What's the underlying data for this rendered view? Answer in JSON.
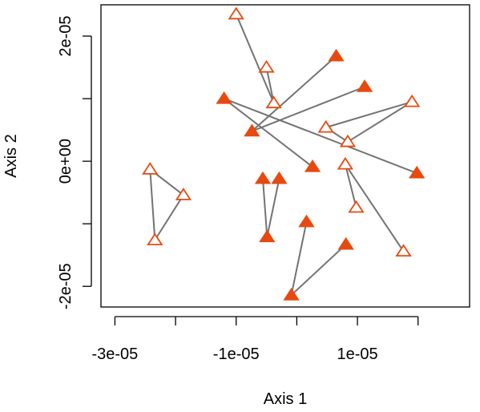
{
  "chart_data": {
    "type": "scatter",
    "title": "",
    "xlabel": "Axis 1",
    "ylabel": "Axis 2",
    "xlim": [
      -3.23e-05,
      2.85e-05
    ],
    "ylim": [
      -2.33e-05,
      2.5e-05
    ],
    "xticks": [
      -3e-05,
      -2e-05,
      -1e-05,
      0,
      1e-05,
      2e-05
    ],
    "xtick_labels": [
      "-3e-05",
      "",
      "-1e-05",
      "",
      "1e-05",
      ""
    ],
    "yticks": [
      -2e-05,
      -1e-05,
      0,
      1e-05,
      2e-05
    ],
    "ytick_labels": [
      "-2e-05",
      "",
      "0e+00",
      "",
      "2e-05"
    ],
    "grid": false,
    "colors": {
      "marker": "#e8490f",
      "segment": "#737373",
      "axis": "#000000"
    },
    "series": [
      {
        "marker": "open-triangle",
        "points": [
          {
            "x": -1e-05,
            "y": 2.35e-05
          },
          {
            "x": -5e-06,
            "y": 1.5e-05
          },
          {
            "x": -3.8e-06,
            "y": 9.3e-06
          },
          {
            "x": 4.8e-06,
            "y": 5.4e-06
          },
          {
            "x": 8.4e-06,
            "y": 3.1e-06
          },
          {
            "x": 1.9e-05,
            "y": 9.5e-06
          },
          {
            "x": 8e-06,
            "y": -5e-07
          },
          {
            "x": 9.8e-06,
            "y": -7.4e-06
          },
          {
            "x": 1.76e-05,
            "y": -1.44e-05
          },
          {
            "x": -2.42e-05,
            "y": -1.3e-06
          },
          {
            "x": -1.87e-05,
            "y": -5.4e-06
          },
          {
            "x": -2.34e-05,
            "y": -1.26e-05
          }
        ]
      },
      {
        "marker": "filled-triangle",
        "points": [
          {
            "x": -1.2e-05,
            "y": 1e-05
          },
          {
            "x": -7.4e-06,
            "y": 4.8e-06
          },
          {
            "x": 6.5e-06,
            "y": 1.68e-05
          },
          {
            "x": 1.12e-05,
            "y": 1.19e-05
          },
          {
            "x": 2.6e-06,
            "y": -9e-07
          },
          {
            "x": 1.98e-05,
            "y": -1.9e-06
          },
          {
            "x": -5.6e-06,
            "y": -2.8e-06
          },
          {
            "x": -2.9e-06,
            "y": -2.8e-06
          },
          {
            "x": -4.9e-06,
            "y": -1.21e-05
          },
          {
            "x": 1.6e-06,
            "y": -9.7e-06
          },
          {
            "x": 8.1e-06,
            "y": -1.33e-05
          },
          {
            "x": -9e-07,
            "y": -2.14e-05
          }
        ]
      }
    ],
    "segments": [
      {
        "x1": -1e-05,
        "y1": 2.35e-05,
        "x2": -3.8e-06,
        "y2": 9.3e-06
      },
      {
        "x1": -5e-06,
        "y1": 1.5e-05,
        "x2": -3.8e-06,
        "y2": 9.3e-06
      },
      {
        "x1": -7.4e-06,
        "y1": 4.8e-06,
        "x2": 6.5e-06,
        "y2": 1.68e-05
      },
      {
        "x1": -7.4e-06,
        "y1": 4.8e-06,
        "x2": 1.12e-05,
        "y2": 1.19e-05
      },
      {
        "x1": -1.2e-05,
        "y1": 1e-05,
        "x2": 1.98e-05,
        "y2": -1.9e-06
      },
      {
        "x1": -1.2e-05,
        "y1": 1e-05,
        "x2": 2.6e-06,
        "y2": -9e-07
      },
      {
        "x1": 4.8e-06,
        "y1": 5.4e-06,
        "x2": 8.4e-06,
        "y2": 3.1e-06
      },
      {
        "x1": 8.4e-06,
        "y1": 3.1e-06,
        "x2": 1.9e-05,
        "y2": 9.5e-06
      },
      {
        "x1": 4.8e-06,
        "y1": 5.4e-06,
        "x2": 1.9e-05,
        "y2": 9.5e-06
      },
      {
        "x1": 8e-06,
        "y1": -5e-07,
        "x2": 9.8e-06,
        "y2": -7.4e-06
      },
      {
        "x1": 8e-06,
        "y1": -5e-07,
        "x2": 1.76e-05,
        "y2": -1.44e-05
      },
      {
        "x1": -2.42e-05,
        "y1": -1.3e-06,
        "x2": -1.87e-05,
        "y2": -5.4e-06
      },
      {
        "x1": -2.42e-05,
        "y1": -1.3e-06,
        "x2": -2.34e-05,
        "y2": -1.26e-05
      },
      {
        "x1": -1.87e-05,
        "y1": -5.4e-06,
        "x2": -2.34e-05,
        "y2": -1.26e-05
      },
      {
        "x1": -5.6e-06,
        "y1": -2.8e-06,
        "x2": -4.9e-06,
        "y2": -1.21e-05
      },
      {
        "x1": -2.9e-06,
        "y1": -2.8e-06,
        "x2": -4.9e-06,
        "y2": -1.21e-05
      },
      {
        "x1": 1.6e-06,
        "y1": -9.7e-06,
        "x2": -9e-07,
        "y2": -2.14e-05
      },
      {
        "x1": 8.1e-06,
        "y1": -1.33e-05,
        "x2": -9e-07,
        "y2": -2.14e-05
      }
    ]
  }
}
